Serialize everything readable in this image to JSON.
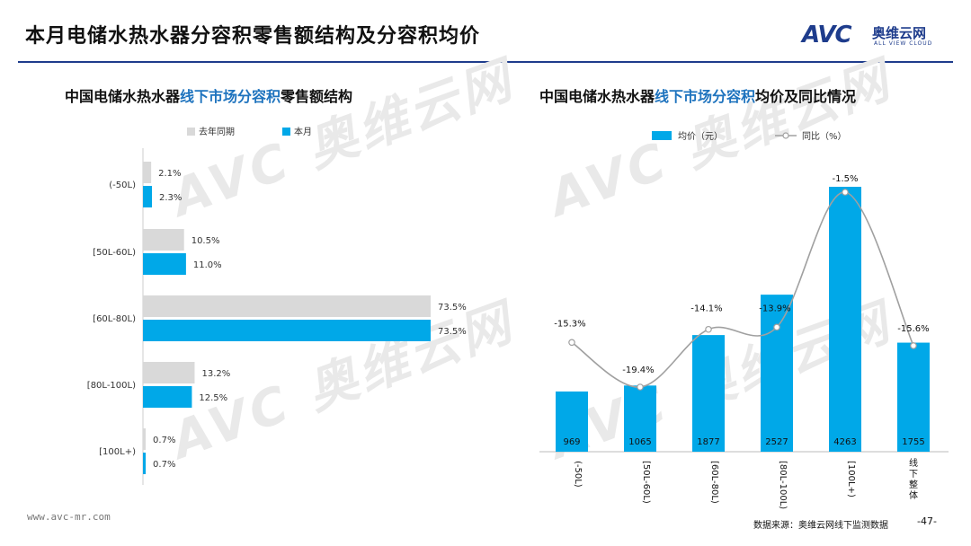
{
  "header": {
    "title": "本月电储水热水器分容积零售额结构及分容积均价",
    "logo_text": "AVC",
    "logo_cn": "奥维云网",
    "logo_en": "ALL VIEW CLOUD"
  },
  "watermark": {
    "text": "AVC 奥维云网",
    "sub": "ALL VIEW CLOUD"
  },
  "left_chart_title": {
    "prefix": "中国电储水热水器",
    "highlight": "线下市场分容积",
    "suffix": "零售额结构"
  },
  "right_chart_title": {
    "prefix": "中国电储水热水器",
    "highlight": "线下市场分容积",
    "suffix": "均价及同比情况"
  },
  "colors": {
    "current": "#00a8e8",
    "last_year": "#d9d9d9",
    "line": "#a0a0a0",
    "title_rule": "#1e3c8c",
    "highlight": "#1e73be"
  },
  "chart_data": [
    {
      "type": "bar",
      "orientation": "horizontal",
      "categories": [
        "(-50L)",
        "[50L-60L)",
        "[60L-80L)",
        "[80L-100L)",
        "[100L+)"
      ],
      "series": [
        {
          "name": "去年同期",
          "values": [
            2.1,
            10.5,
            73.5,
            13.2,
            0.7
          ],
          "labels": [
            "2.1%",
            "10.5%",
            "73.5%",
            "13.2%",
            "0.7%"
          ]
        },
        {
          "name": "本月",
          "values": [
            2.3,
            11.0,
            73.5,
            12.5,
            0.7
          ],
          "labels": [
            "2.3%",
            "11.0%",
            "73.5%",
            "12.5%",
            "0.7%"
          ]
        }
      ],
      "unit": "%",
      "legend_position": "top"
    },
    {
      "type": "bar+line",
      "categories": [
        "(-50L)",
        "[50L-60L)",
        "[60L-80L)",
        "[80L-100L)",
        "[100L+)",
        "线下整体"
      ],
      "series": [
        {
          "name": "均价（元）",
          "type": "bar",
          "values": [
            969,
            1065,
            1877,
            2527,
            4263,
            1755
          ]
        },
        {
          "name": "同比（%）",
          "type": "line",
          "values": [
            -15.3,
            -19.4,
            -14.1,
            -13.9,
            -1.5,
            -15.6
          ],
          "labels": [
            "-15.3%",
            "-19.4%",
            "-14.1%",
            "-13.9%",
            "-1.5%",
            "-15.6%"
          ]
        }
      ],
      "legend_position": "top"
    }
  ],
  "footer": {
    "url": "www.avc-mr.com",
    "source": "数据来源：奥维云网线下监测数据",
    "page": "-47-"
  }
}
